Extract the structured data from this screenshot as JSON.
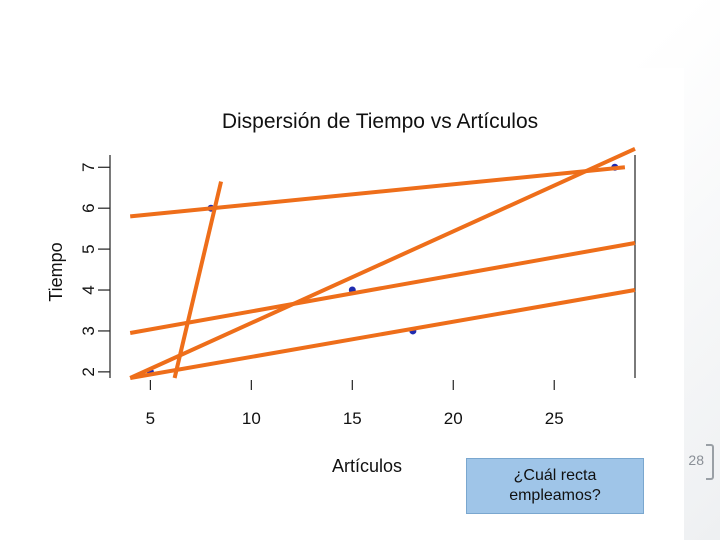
{
  "slide": {
    "callout_text": "¿Cuál recta\nempleamos?",
    "page_number": "28"
  },
  "chart_data": {
    "type": "scatter",
    "title": "Dispersión de Tiempo vs Artículos",
    "xlabel": "Artículos",
    "ylabel": "Tiempo",
    "xlim": [
      3,
      29
    ],
    "ylim": [
      1.85,
      7.3
    ],
    "xticks": [
      5,
      10,
      15,
      20,
      25
    ],
    "yticks": [
      2,
      3,
      4,
      5,
      6,
      7
    ],
    "grid": false,
    "point_color": "#1f2bb0",
    "line_color": "#ee6e1a",
    "points": [
      {
        "x": 5,
        "y": 2
      },
      {
        "x": 8,
        "y": 6
      },
      {
        "x": 15,
        "y": 4
      },
      {
        "x": 18,
        "y": 3
      },
      {
        "x": 28,
        "y": 7
      }
    ],
    "candidate_lines": [
      {
        "x1": 4.0,
        "y1": 5.8,
        "x2": 28.5,
        "y2": 7.0
      },
      {
        "x1": 4.0,
        "y1": 1.85,
        "x2": 29.0,
        "y2": 7.45
      },
      {
        "x1": 4.0,
        "y1": 2.95,
        "x2": 29.0,
        "y2": 5.15
      },
      {
        "x1": 4.0,
        "y1": 1.85,
        "x2": 29.0,
        "y2": 4.0
      },
      {
        "x1": 6.2,
        "y1": 1.85,
        "x2": 8.5,
        "y2": 6.65
      }
    ]
  }
}
